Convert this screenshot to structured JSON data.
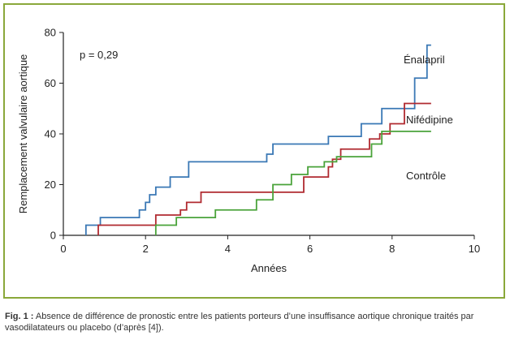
{
  "chart_data": {
    "type": "line",
    "title": "",
    "xlabel": "Années",
    "ylabel": "Remplacement valvulaire aortique",
    "xlim": [
      0,
      10
    ],
    "ylim": [
      0,
      80
    ],
    "xticks": [
      "0",
      "2",
      "4",
      "6",
      "8",
      "10"
    ],
    "yticks": [
      "0",
      "20",
      "40",
      "60",
      "80"
    ],
    "grid": false,
    "annotation": "p = 0,29",
    "series": [
      {
        "name": "Énalapril",
        "color": "#3a78b5",
        "step": true,
        "x": [
          0.55,
          0.9,
          1.85,
          2.0,
          2.1,
          2.25,
          2.6,
          3.05,
          4.95,
          5.1,
          6.45,
          7.25,
          7.75,
          8.55,
          8.85,
          8.95
        ],
        "y": [
          4,
          7,
          10,
          13,
          16,
          19,
          23,
          29,
          32,
          36,
          39,
          44,
          50,
          62,
          75,
          75
        ]
      },
      {
        "name": "Nifédipine",
        "color": "#b02a30",
        "step": true,
        "x": [
          0.85,
          2.25,
          2.85,
          3.0,
          3.35,
          5.85,
          6.45,
          6.55,
          6.75,
          7.45,
          7.7,
          7.95,
          8.3,
          8.95
        ],
        "y": [
          4,
          8,
          10,
          13,
          17,
          23,
          27,
          30,
          34,
          38,
          40,
          44,
          52,
          52
        ]
      },
      {
        "name": "Contrôle",
        "color": "#4aa33a",
        "step": true,
        "x": [
          2.25,
          2.75,
          3.7,
          4.7,
          5.1,
          5.55,
          5.95,
          6.35,
          6.65,
          7.5,
          7.75,
          8.95
        ],
        "y": [
          4,
          7,
          10,
          14,
          20,
          24,
          27,
          29,
          31,
          36,
          41,
          41
        ]
      }
    ]
  },
  "caption": {
    "label": "Fig. 1 :",
    "text": " Absence de différence de pronostic entre les patients porteurs d’une insuffisance aortique chronique traités par vasodilatateurs ou placebo (d’après [4])."
  }
}
